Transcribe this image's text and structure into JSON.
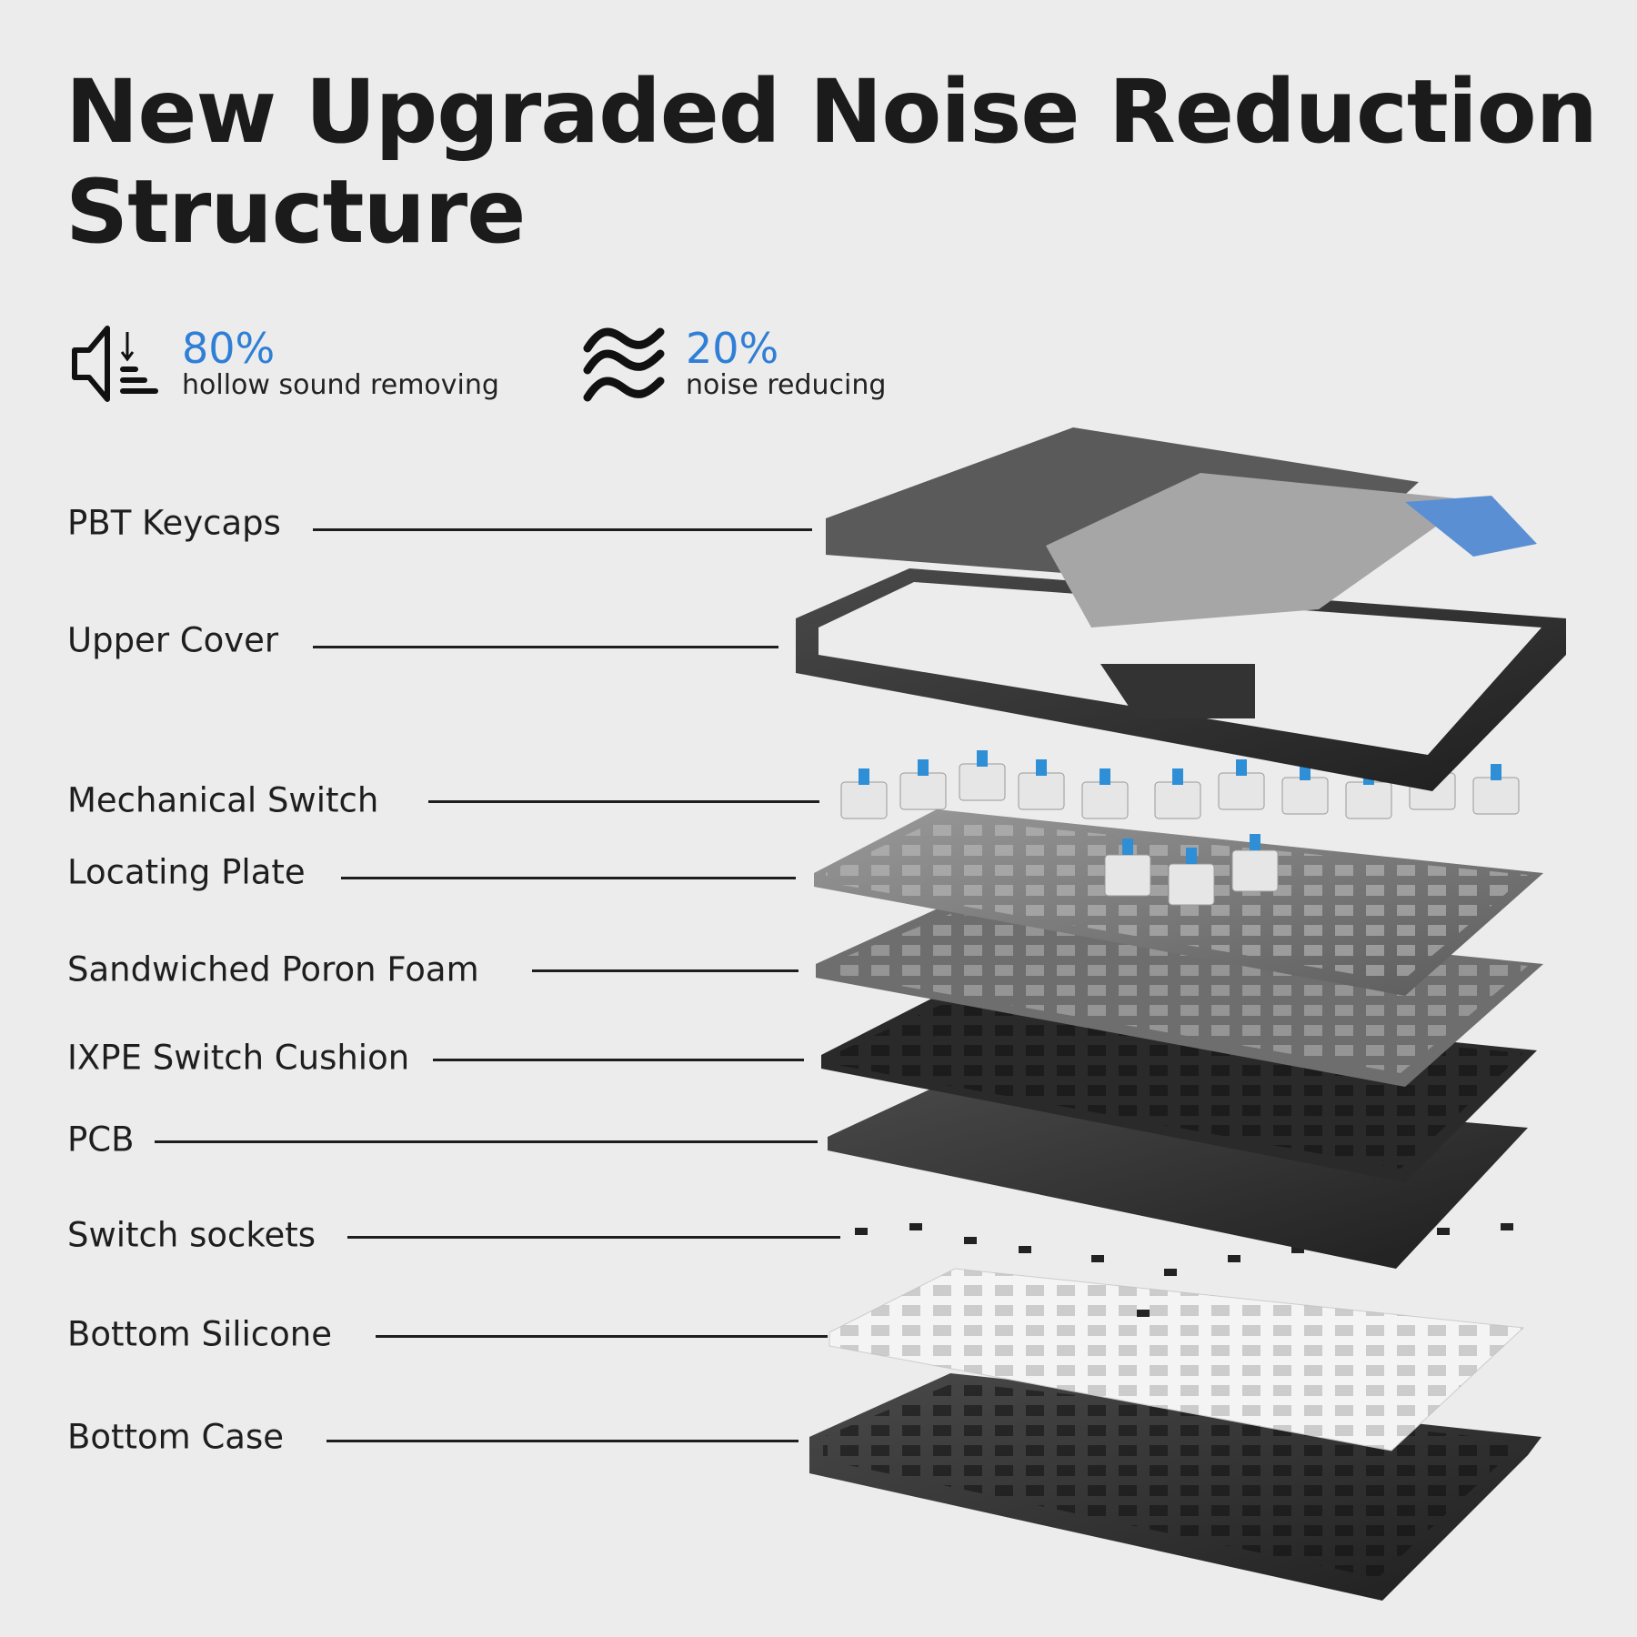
{
  "title_lines": [
    "New Upgraded Noise Reduction",
    "Structure"
  ],
  "stats": [
    {
      "icon": "speaker-down-icon",
      "value": "80%",
      "label": "hollow sound removing"
    },
    {
      "icon": "waves-icon",
      "value": "20%",
      "label": "noise reducing"
    }
  ],
  "accent_color": "#2f7fd6",
  "layers": [
    "PBT Keycaps",
    "Upper Cover",
    "Mechanical Switch",
    "Locating Plate",
    "Sandwiched Poron Foam",
    "IXPE Switch Cushion",
    "PCB",
    "Switch sockets",
    "Bottom Silicone",
    "Bottom Case"
  ]
}
